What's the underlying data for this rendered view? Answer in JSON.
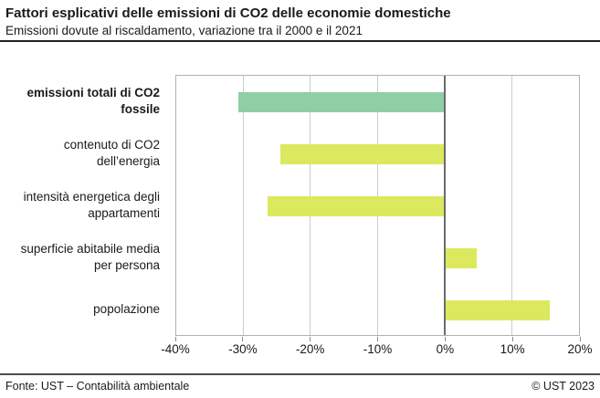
{
  "header": {
    "title": "Fattori esplicativi delle emissioni di CO2 delle economie domestiche",
    "subtitle": "Emissioni dovute al riscaldamento, variazione tra il 2000 e il 2021"
  },
  "footer": {
    "source": "Fonte: UST – Contabilità ambientale",
    "copyright": "© UST 2023"
  },
  "colors": {
    "total_emissions_bar": "#8fcfa5",
    "factor_bar": "#dce95e",
    "gridline": "#cccccc",
    "zero_line": "#6b6b6b",
    "plot_border": "#b1b1b1"
  },
  "chart_data": {
    "type": "bar",
    "orientation": "horizontal",
    "title": "Fattori esplicativi delle emissioni di CO2 delle economie domestiche",
    "subtitle": "Emissioni dovute al riscaldamento, variazione tra il 2000 e il 2021",
    "categories": [
      "emissioni totali di CO2 fossile",
      "contenuto di CO2 dell’energia",
      "intensità energetica degli appartamenti",
      "superficie abitabile media per persona",
      "popolazione"
    ],
    "values": [
      -30.8,
      -24.5,
      -26.4,
      4.8,
      15.6
    ],
    "value_unit": "%",
    "xlim": [
      -40,
      20
    ],
    "x_tick_values": [
      -40,
      -30,
      -20,
      -10,
      0,
      10,
      20
    ],
    "x_tick_labels": [
      "-40%",
      "-30%",
      "-20%",
      "-10%",
      "0%",
      "10%",
      "20%"
    ],
    "grid": true,
    "legend": false,
    "bold_category_index": 0,
    "highlight_series_note": "first bar green (total), remaining bars yellow-green (factors)"
  }
}
